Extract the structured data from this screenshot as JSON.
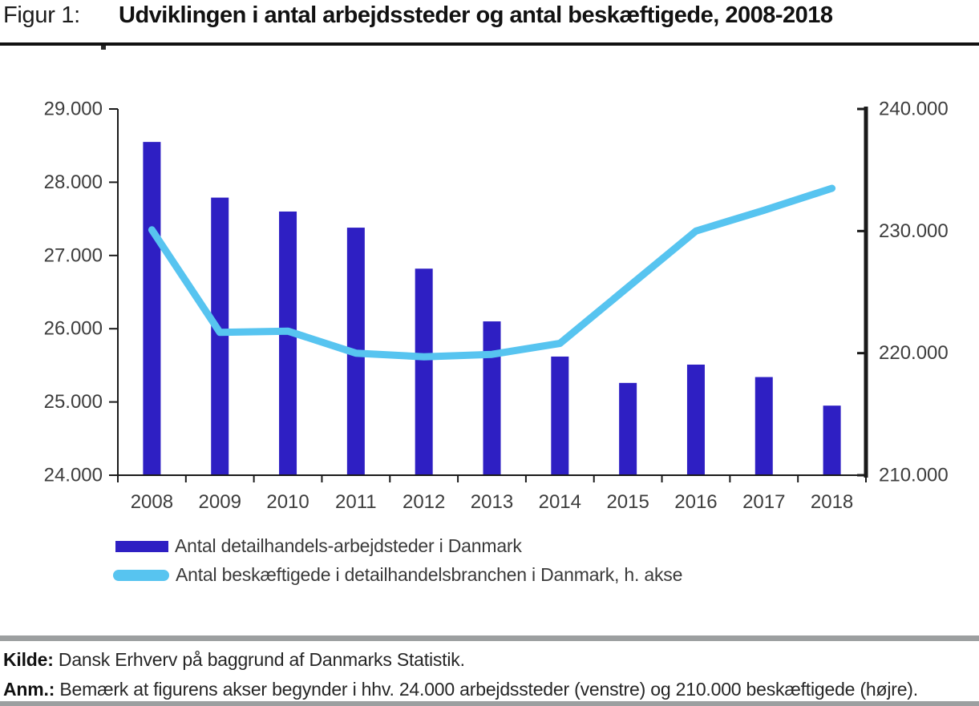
{
  "header": {
    "figure_label": "Figur 1:",
    "title": "Udviklingen i antal arbejdssteder og antal beskæftigede, 2008-2018"
  },
  "chart_data": {
    "type": "bar+line",
    "title": "Udviklingen i antal arbejdssteder og antal beskæftigede, 2008-2018",
    "categories": [
      "2008",
      "2009",
      "2010",
      "2011",
      "2012",
      "2013",
      "2014",
      "2015",
      "2016",
      "2017",
      "2018"
    ],
    "series": [
      {
        "name": "Antal detailhandels-arbejdsteder i Danmark",
        "kind": "bar",
        "axis": "left",
        "color": "#2e1fc3",
        "values": [
          28550,
          27790,
          27600,
          27380,
          26820,
          26100,
          25620,
          25260,
          25510,
          25340,
          24950
        ]
      },
      {
        "name": "Antal beskæftigede i detailhandelsbranchen i Danmark, h. akse",
        "kind": "line",
        "axis": "right",
        "color": "#57c4f0",
        "values": [
          230100,
          221700,
          221800,
          220000,
          219700,
          219900,
          220800,
          225400,
          230000,
          231700,
          233500
        ]
      }
    ],
    "left_axis": {
      "min": 24000,
      "max": 29000,
      "step": 1000,
      "tick_labels": [
        "24.000",
        "25.000",
        "26.000",
        "27.000",
        "28.000",
        "29.000"
      ]
    },
    "right_axis": {
      "min": 210000,
      "max": 240000,
      "step": 10000,
      "tick_labels": [
        "210.000",
        "220.000",
        "230.000",
        "240.000"
      ]
    },
    "grid": false,
    "legend_position": "bottom-left"
  },
  "footer": {
    "kilde_label": "Kilde:",
    "kilde_text": "Dansk Erhverv på baggrund af Danmarks Statistik.",
    "anm_label": "Anm.:",
    "anm_text": "Bemærk at figurens akser begynder i hhv. 24.000 arbejdssteder (venstre) og 210.000 beskæftigede (højre)."
  },
  "colors": {
    "bar": "#2e1fc3",
    "line": "#57c4f0",
    "axis": "#1a1a1a",
    "tick_label": "#3d3d3d",
    "rule_gray": "#9c9fa0"
  }
}
